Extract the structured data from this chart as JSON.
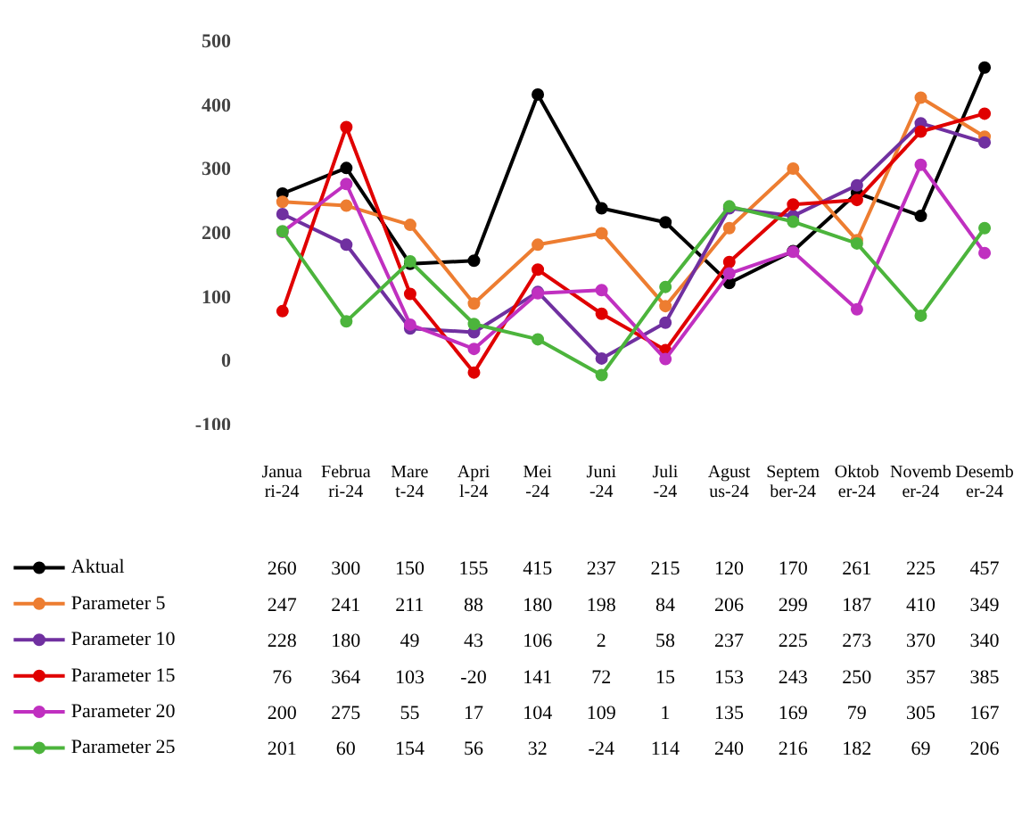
{
  "chart_data": {
    "type": "line",
    "categories": [
      "Januari-24",
      "Februari-24",
      "Maret-24",
      "April-24",
      "Mei-24",
      "Juni-24",
      "Juli-24",
      "Agustus-24",
      "September-24",
      "Oktober-24",
      "November-24",
      "Desember-24"
    ],
    "series": [
      {
        "name": "Aktual",
        "color": "#000000",
        "values": [
          260,
          300,
          150,
          155,
          415,
          237,
          215,
          120,
          170,
          261,
          225,
          457
        ]
      },
      {
        "name": "Parameter 5",
        "color": "#ed7d31",
        "values": [
          247,
          241,
          211,
          88,
          180,
          198,
          84,
          206,
          299,
          187,
          410,
          349
        ]
      },
      {
        "name": "Parameter 10",
        "color": "#7030a0",
        "values": [
          228,
          180,
          49,
          43,
          106,
          2,
          58,
          237,
          225,
          273,
          370,
          340
        ]
      },
      {
        "name": "Parameter 15",
        "color": "#e00000",
        "values": [
          76,
          364,
          103,
          -20,
          141,
          72,
          15,
          153,
          243,
          250,
          357,
          385
        ]
      },
      {
        "name": "Parameter 20",
        "color": "#c030c0",
        "values": [
          200,
          275,
          55,
          17,
          104,
          109,
          1,
          135,
          169,
          79,
          305,
          167
        ]
      },
      {
        "name": "Parameter 25",
        "color": "#4cb43c",
        "values": [
          201,
          60,
          154,
          56,
          32,
          -24,
          114,
          240,
          216,
          182,
          69,
          206
        ]
      }
    ],
    "ylim": [
      -100,
      500
    ],
    "yticks": [
      -100,
      0,
      100,
      200,
      300,
      400,
      500
    ],
    "grid": false,
    "legend": "bottom",
    "marker": "circle",
    "line_style": "solid",
    "data_labels": true
  }
}
